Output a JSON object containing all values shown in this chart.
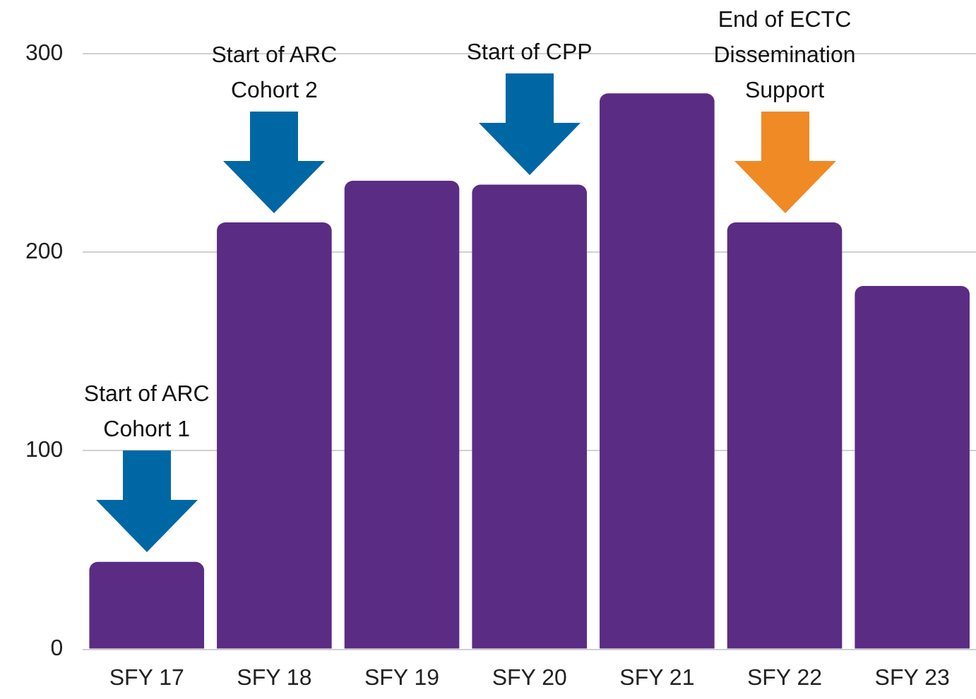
{
  "chart_data": {
    "type": "bar",
    "categories": [
      "SFY 17",
      "SFY 18",
      "SFY 19",
      "SFY 20",
      "SFY 21",
      "SFY 22",
      "SFY 23"
    ],
    "values": [
      44,
      215,
      236,
      234,
      280,
      215,
      183
    ],
    "color": "#5b2c83",
    "ylim": [
      0,
      300
    ],
    "yticks": [
      0,
      100,
      200,
      300
    ],
    "grid": "y",
    "annotations": [
      "Start of ARC\nCohort 1",
      "Start of ARC\nCohort 2",
      "Start of CPP",
      "End of ECTC\nDissemination\nSupport"
    ]
  }
}
